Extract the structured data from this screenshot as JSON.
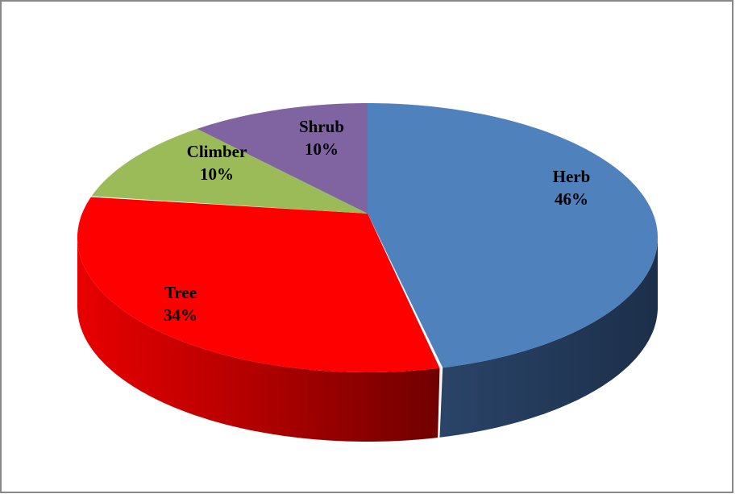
{
  "chart_data": {
    "type": "pie",
    "style": "3d",
    "start": "top, clockwise",
    "slices": [
      {
        "label": "Herb",
        "value": 46,
        "value_label": "46%",
        "color": "#4f81bd",
        "side_color": "#1f3350"
      },
      {
        "label": "Tree",
        "value": 34,
        "value_label": "34%",
        "color": "#ff0000",
        "side_color": "#c00000"
      },
      {
        "label": "Climber",
        "value": 10,
        "value_label": "10%",
        "color": "#9bbb59",
        "side_color": "#6a8a30"
      },
      {
        "label": "Shrub",
        "value": 10,
        "value_label": "10%",
        "color": "#8064a2",
        "side_color": "#5a4578"
      }
    ],
    "legend": "none"
  }
}
